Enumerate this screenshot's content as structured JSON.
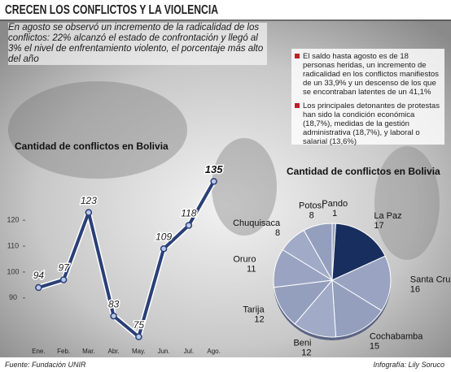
{
  "header": {
    "title": "CRECEN LOS CONFLICTOS Y LA VIOLENCIA",
    "intro": "En agosto se observó un incremento de la radicalidad de los conflictos: 22% alcanzó el estado de confrontación y llegó al 3% el nivel de enfrentamiento violento, el porcentaje más alto del año"
  },
  "notes": [
    "El saldo hasta agosto es de 18 personas heridas, un incremento de radicalidad en los conflictos manifiestos de un 33,9% y un descenso de los que se encontraban latentes de un 41,1%",
    "Los principales detonantes de protestas han sido la condición económica (18,7%), medidas de la gestión administrativa (18,7%), y laboral o salarial (13,6%)"
  ],
  "footer": {
    "source": "Fuente: Fundación UNIR",
    "credit": "Infografía: Lily Soruco"
  },
  "chart_data": [
    {
      "type": "line",
      "title": "Cantidad de conflictos en Bolivia",
      "categories": [
        "Ene.",
        "Feb.",
        "Mar.",
        "Abr.",
        "May.",
        "Jun.",
        "Jul.",
        "Ago."
      ],
      "values": [
        94,
        97,
        123,
        83,
        75,
        109,
        118,
        135
      ],
      "color": "#2b3f78",
      "ylim": [
        73,
        142
      ],
      "yticks": [
        90,
        100,
        110,
        120
      ]
    },
    {
      "type": "pie",
      "title": "Cantidad de conflictos en Bolivia",
      "categories": [
        "Pando",
        "La Paz",
        "Santa Cruz",
        "Cochabamba",
        "Beni",
        "Tarija",
        "Oruro",
        "Chuquisaca",
        "Potosí"
      ],
      "values": [
        1,
        17,
        16,
        15,
        12,
        12,
        11,
        8,
        8
      ],
      "colors": [
        "#9aa4c2",
        "#182e5e",
        "#9aa4c2",
        "#949fbe",
        "#a1abc7",
        "#949fbe",
        "#9aa4c2",
        "#a1abc7",
        "#949fbe"
      ]
    }
  ]
}
